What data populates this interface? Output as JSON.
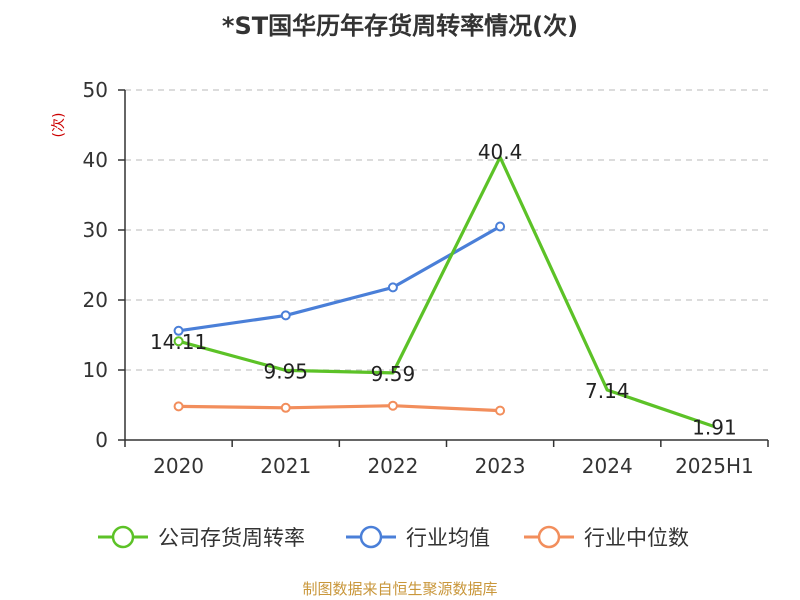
{
  "title": "*ST国华历年存货周转率情况(次)",
  "source": "制图数据来自恒生聚源数据库",
  "chart_data": {
    "type": "line",
    "title": "*ST国华历年存货周转率情况(次)",
    "ylabel": "(次)",
    "categories": [
      "2020",
      "2021",
      "2022",
      "2023",
      "2024",
      "2025H1"
    ],
    "ylim": [
      0,
      50
    ],
    "yticks": [
      0,
      10,
      20,
      30,
      40,
      50
    ],
    "grid": true,
    "legend_position": "bottom",
    "series": [
      {
        "name": "公司存货周转率",
        "color": "#5cc227",
        "markers": "first-only",
        "values": [
          14.11,
          9.95,
          9.59,
          40.4,
          7.14,
          1.91
        ],
        "labels": [
          "14.11",
          "9.95",
          "9.59",
          "40.4",
          "7.14",
          "1.91"
        ]
      },
      {
        "name": "行业均值",
        "color": "#4a7fd8",
        "markers": "all",
        "values": [
          15.6,
          17.8,
          21.8,
          30.5,
          null,
          null
        ]
      },
      {
        "name": "行业中位数",
        "color": "#f28e5c",
        "markers": "all",
        "values": [
          4.8,
          4.6,
          4.9,
          4.2,
          null,
          null
        ]
      }
    ]
  }
}
